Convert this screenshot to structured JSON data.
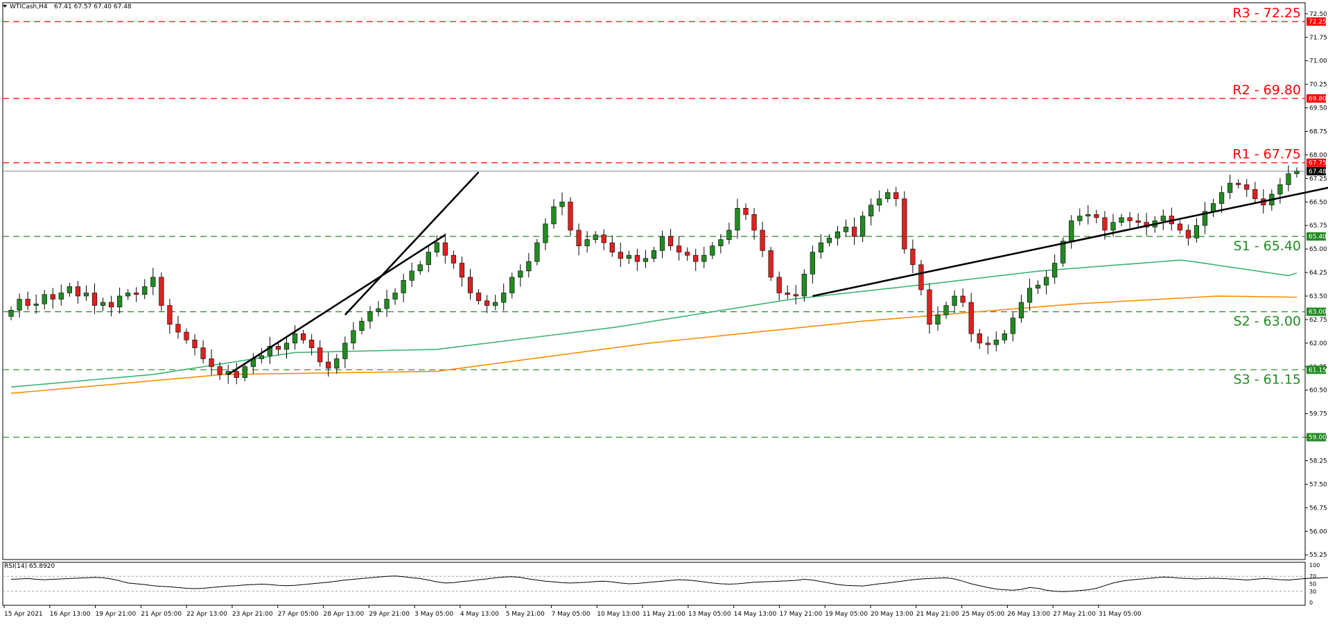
{
  "header": {
    "symbol_timeframe": "WTICash,H4",
    "ohlc": "67.41 67.57 67.40 67.48"
  },
  "rsi": {
    "label": "RSI(14) 65.8920",
    "level_labels": [
      "100",
      "70",
      "50",
      "30",
      "0"
    ],
    "levels": [
      100,
      70,
      50,
      30,
      0
    ],
    "values": [
      62,
      63,
      64,
      62,
      61,
      62,
      63,
      64,
      65,
      66,
      67,
      66,
      63,
      58,
      52,
      50,
      48,
      45,
      43,
      42,
      40,
      38,
      37,
      38,
      40,
      42,
      44,
      45,
      47,
      48,
      49,
      48,
      46,
      45,
      46,
      48,
      50,
      52,
      54,
      57,
      60,
      62,
      64,
      66,
      68,
      70,
      71,
      69,
      66,
      64,
      60,
      55,
      52,
      53,
      56,
      58,
      61,
      63,
      66,
      68,
      69,
      67,
      63,
      60,
      57,
      55,
      53,
      52,
      53,
      54,
      56,
      57,
      55,
      52,
      50,
      51,
      53,
      55,
      57,
      59,
      61,
      60,
      58,
      55,
      52,
      50,
      49,
      50,
      52,
      54,
      55,
      56,
      57,
      58,
      59,
      62,
      60,
      56,
      52,
      48,
      46,
      45,
      44,
      47,
      50,
      52,
      55,
      58,
      61,
      63,
      64,
      65,
      66,
      63,
      57,
      50,
      45,
      40,
      36,
      34,
      33,
      35,
      40,
      38,
      33,
      30,
      29,
      30,
      32,
      34,
      38,
      45,
      52,
      57,
      60,
      62,
      64,
      66,
      68,
      67,
      65,
      64,
      63,
      64,
      65,
      64,
      63,
      62,
      60,
      62,
      64,
      63,
      61,
      60,
      62,
      64,
      65,
      66,
      67,
      66,
      65,
      63,
      62,
      60,
      61,
      63,
      65,
      66
    ],
    "colors": {
      "line": "#000000",
      "level": "#a0a0a0"
    }
  },
  "chart_data": {
    "type": "candlestick",
    "instrument": "WTICash",
    "timeframe": "H4",
    "x_tick_labels": [
      "15 Apr 2021",
      "16 Apr 13:00",
      "19 Apr 21:00",
      "21 Apr 05:00",
      "22 Apr 13:00",
      "23 Apr 21:00",
      "27 Apr 05:00",
      "28 Apr 13:00",
      "29 Apr 21:00",
      "3 May 05:00",
      "4 May 13:00",
      "5 May 21:00",
      "7 May 05:00",
      "10 May 13:00",
      "11 May 21:00",
      "13 May 05:00",
      "14 May 13:00",
      "17 May 21:00",
      "19 May 05:00",
      "20 May 13:00",
      "21 May 21:00",
      "25 May 05:00",
      "26 May 13:00",
      "27 May 21:00",
      "31 May 05:00"
    ],
    "y_tick_labels": [
      "72.50",
      "71.75",
      "71.00",
      "70.25",
      "69.50",
      "68.75",
      "68.00",
      "67.25",
      "66.50",
      "65.75",
      "65.00",
      "64.25",
      "63.50",
      "62.75",
      "62.00",
      "61.25",
      "60.50",
      "59.75",
      "59.00",
      "58.25",
      "57.50",
      "56.75",
      "56.00",
      "55.25"
    ],
    "y_ticks": [
      72.5,
      71.75,
      71.0,
      70.25,
      69.5,
      68.75,
      68.0,
      67.25,
      66.5,
      65.75,
      65.0,
      64.25,
      63.5,
      62.75,
      62.0,
      61.25,
      60.5,
      59.75,
      59.0,
      58.25,
      57.5,
      56.75,
      56.0,
      55.25
    ],
    "ylim": [
      55.1,
      72.85
    ],
    "close": [
      63.05,
      63.4,
      63.2,
      63.25,
      63.55,
      63.4,
      63.6,
      63.8,
      63.5,
      63.6,
      63.2,
      63.3,
      63.15,
      63.5,
      63.6,
      63.55,
      63.8,
      64.1,
      63.2,
      62.6,
      62.35,
      62.1,
      61.85,
      61.5,
      61.25,
      61.0,
      61.1,
      60.9,
      61.25,
      61.5,
      61.6,
      61.9,
      61.8,
      62.0,
      62.3,
      62.1,
      61.85,
      61.4,
      61.2,
      61.5,
      62.0,
      62.4,
      62.7,
      63.0,
      63.1,
      63.4,
      63.6,
      64.0,
      64.3,
      64.5,
      64.9,
      65.2,
      64.8,
      64.55,
      64.1,
      63.6,
      63.35,
      63.2,
      63.3,
      63.6,
      64.1,
      64.3,
      64.6,
      65.2,
      65.8,
      66.35,
      66.5,
      65.6,
      65.1,
      65.3,
      65.45,
      65.2,
      64.9,
      64.7,
      64.8,
      64.6,
      64.7,
      64.95,
      65.4,
      65.1,
      64.9,
      64.8,
      64.6,
      64.8,
      65.1,
      65.3,
      65.6,
      66.3,
      66.1,
      65.6,
      64.95,
      64.1,
      63.6,
      63.55,
      63.5,
      64.2,
      64.9,
      65.2,
      65.35,
      65.55,
      65.7,
      65.4,
      66.05,
      66.4,
      66.6,
      66.8,
      66.6,
      65.0,
      64.5,
      63.7,
      62.6,
      62.9,
      63.2,
      63.5,
      63.3,
      62.3,
      62.0,
      61.95,
      62.1,
      62.3,
      62.8,
      63.3,
      63.75,
      63.85,
      64.1,
      64.55,
      65.25,
      65.9,
      66.05,
      66.1,
      66.0,
      65.6,
      65.85,
      66.0,
      65.9,
      65.85,
      65.7,
      65.9,
      66.05,
      65.8,
      65.6,
      65.35,
      65.75,
      66.2,
      66.45,
      66.8,
      67.1,
      67.05,
      66.9,
      66.6,
      66.4,
      66.75,
      67.05,
      67.4,
      67.48
    ],
    "ma100": {
      "color": "#3cb371",
      "start": 60.6,
      "points": [
        [
          0,
          60.6
        ],
        [
          20,
          61.0
        ],
        [
          40,
          61.7
        ],
        [
          60,
          61.8
        ],
        [
          85,
          62.5
        ],
        [
          110,
          63.4
        ],
        [
          130,
          63.9
        ],
        [
          145,
          64.3
        ],
        [
          165,
          64.65
        ],
        [
          180,
          64.15
        ],
        [
          195,
          65.2
        ]
      ],
      "end": 65.2
    },
    "ma200": {
      "color": "#ff8c00",
      "start": 60.4,
      "points": [
        [
          0,
          60.4
        ],
        [
          30,
          61.0
        ],
        [
          60,
          61.1
        ],
        [
          90,
          62.0
        ],
        [
          120,
          62.7
        ],
        [
          150,
          63.25
        ],
        [
          170,
          63.5
        ],
        [
          185,
          63.45
        ],
        [
          200,
          64.2
        ]
      ],
      "end": 64.2
    },
    "levels": [
      {
        "name": "R3",
        "label": "R3 - 72.25",
        "axis_tag": "72.25",
        "value": 72.25,
        "color": "#ff0000"
      },
      {
        "name": "R2",
        "label": "R2 - 69.80",
        "axis_tag": "69.80",
        "value": 69.8,
        "color": "#ff0000"
      },
      {
        "name": "R1",
        "label": "R1 - 67.75",
        "axis_tag": "67.75",
        "value": 67.75,
        "color": "#ff0000"
      },
      {
        "name": "S1",
        "label": "S1 - 65.40",
        "axis_tag": "65.40",
        "value": 65.4,
        "color": "#228b22"
      },
      {
        "name": "S2",
        "label": "S2 - 63.00",
        "axis_tag": "63.00",
        "value": 63.0,
        "color": "#228b22"
      },
      {
        "name": "S3",
        "label": "S3 - 61.15",
        "axis_tag": "61.15",
        "value": 61.15,
        "color": "#228b22"
      },
      {
        "name": "support59",
        "label": "",
        "axis_tag": "59.00",
        "value": 59.0,
        "color": "#228b22"
      }
    ],
    "current_price": {
      "value": 67.48,
      "label": "67.48"
    },
    "trendlines": [
      {
        "from": [
          26,
          61.0
        ],
        "to": [
          52,
          65.45
        ]
      },
      {
        "from": [
          40,
          62.9
        ],
        "to": [
          56,
          67.45
        ]
      },
      {
        "from": [
          96,
          63.5
        ],
        "to": [
          172,
          67.75
        ]
      }
    ],
    "colors": {
      "up": "#228b22",
      "down": "#e02020",
      "axis_text": "#000000"
    }
  }
}
